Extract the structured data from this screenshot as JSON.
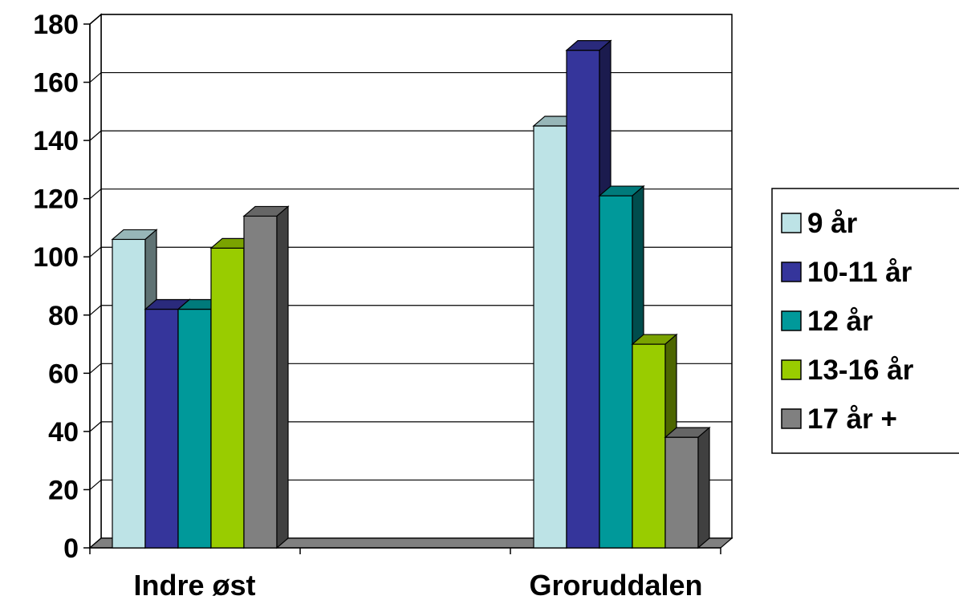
{
  "chart_data": {
    "type": "bar",
    "categories": [
      "Indre øst",
      "Groruddalen"
    ],
    "series": [
      {
        "name": "9 år",
        "values": [
          106,
          145
        ],
        "color": "#bde3e6"
      },
      {
        "name": "10-11 år",
        "values": [
          82,
          171
        ],
        "color": "#35359b"
      },
      {
        "name": "12 år",
        "values": [
          82,
          121
        ],
        "color": "#00999a"
      },
      {
        "name": "13-16 år",
        "values": [
          103,
          70
        ],
        "color": "#99cc00"
      },
      {
        "name": "17 år +",
        "values": [
          114,
          38
        ],
        "color": "#808080"
      }
    ],
    "yticks": [
      "0",
      "20",
      "40",
      "60",
      "80",
      "100",
      "120",
      "140",
      "160",
      "180"
    ],
    "ylim": [
      0,
      180
    ],
    "grid": true,
    "legend": "right",
    "style": "3d-clustered-column"
  }
}
